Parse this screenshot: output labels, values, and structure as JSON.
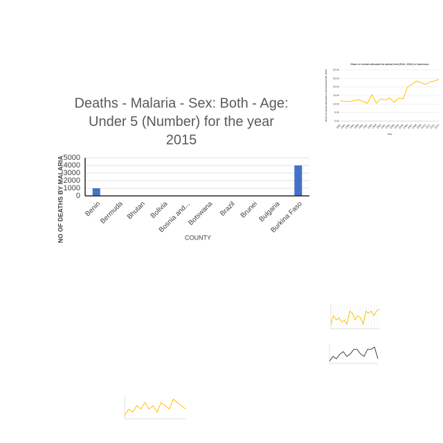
{
  "chart_data": [
    {
      "type": "bar",
      "title_lines": [
        "Deaths - Malaria - Sex: Both - Age:",
        "Under 5 (Number) for the year",
        "2015"
      ],
      "y_label": "NO OF DEATHS BY MALARIA",
      "x_label": "COUNTY",
      "categories": [
        "Benin",
        "Bermuda",
        "Bhutan",
        "Bolivia",
        "Bosnia and...",
        "Botswana",
        "Brazil",
        "Brunei",
        "Bulgaria",
        "Burkina Faso"
      ],
      "values": [
        1000,
        0,
        0,
        0,
        0,
        0,
        0,
        0,
        0,
        4000
      ],
      "color": "#4472c4",
      "ylim": [
        0,
        5000
      ],
      "yticks": [
        0,
        1000,
        2000,
        3000,
        4000,
        5000
      ],
      "grid": true
    },
    {
      "type": "line",
      "title": "Share of cereals allocated to animal feed (FAO, 2020)  in Cameroon",
      "y_label": "Share of cereals allocated to animal feed (FAO, 2020)",
      "x_label": "Year",
      "x": [
        1991,
        1992,
        1993,
        1994,
        1995,
        1996,
        1997,
        1998,
        1999,
        2000,
        2001,
        2002,
        2003,
        2004,
        2005,
        2006,
        2007,
        2008,
        2009,
        2010,
        2011,
        2012,
        2013
      ],
      "values": [
        12,
        11.5,
        11.5,
        12,
        12.5,
        11.5,
        10.5,
        15.5,
        10.5,
        13,
        12.5,
        13.5,
        11,
        13.5,
        13,
        20,
        21.5,
        23.5,
        22.5,
        21.5,
        23,
        23.5,
        24.5
      ],
      "color": "#ffc000",
      "xlim": [
        1991,
        2013
      ],
      "ylim": [
        0,
        30
      ],
      "yticks": [
        {
          "value": 0,
          "label": "0.00"
        },
        {
          "value": 5,
          "label": "5.00"
        },
        {
          "value": 10,
          "label": "10.00"
        },
        {
          "value": 15,
          "label": "15.00"
        },
        {
          "value": 20,
          "label": "20.00"
        },
        {
          "value": 25,
          "label": "25.00"
        },
        {
          "value": 30,
          "label": "30.00"
        }
      ],
      "grid": true
    },
    {
      "type": "line",
      "values": [
        6,
        8,
        7,
        7.5,
        6.5,
        7,
        6,
        9,
        8.5,
        7,
        8,
        7.5,
        6,
        9,
        8.5,
        9,
        8,
        9,
        9.5
      ],
      "color": "#ffc000",
      "grid": true
    },
    {
      "type": "line",
      "values": [
        3,
        5,
        4,
        6,
        7,
        5,
        6,
        8,
        8,
        6,
        5,
        8,
        8,
        9,
        4
      ],
      "color": "#404040",
      "grid": false
    },
    {
      "type": "line",
      "values": [
        3,
        5,
        4,
        6,
        5,
        7,
        5,
        6,
        4,
        7,
        6,
        5,
        8,
        7,
        6,
        5
      ],
      "color": "#ffc000",
      "grid": false
    }
  ]
}
